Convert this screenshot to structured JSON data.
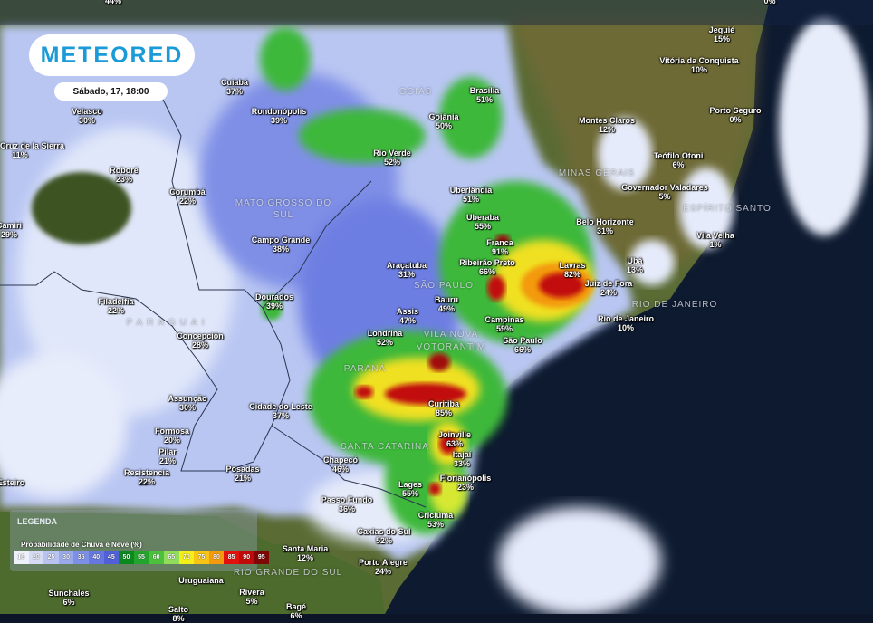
{
  "brand": {
    "logo": "METEORED",
    "logo_color": "#1a9ad6",
    "datetime": "Sábado, 17, 18:00"
  },
  "legend": {
    "title": "LEGENDA",
    "subtitle": "Probabilidade de Chuva e Neve (%)",
    "scale": [
      {
        "v": "15",
        "c": "#eef1fb"
      },
      {
        "v": "20",
        "c": "#d6dcf6"
      },
      {
        "v": "25",
        "c": "#b8c3f0"
      },
      {
        "v": "30",
        "c": "#9aa9ec"
      },
      {
        "v": "35",
        "c": "#7d8fe6"
      },
      {
        "v": "40",
        "c": "#6677e0"
      },
      {
        "v": "45",
        "c": "#5160d8"
      },
      {
        "v": "50",
        "c": "#0a8a1e"
      },
      {
        "v": "55",
        "c": "#23a42c"
      },
      {
        "v": "60",
        "c": "#4cc03c"
      },
      {
        "v": "65",
        "c": "#92dc5c"
      },
      {
        "v": "70",
        "c": "#f4ee1a"
      },
      {
        "v": "75",
        "c": "#f8c514"
      },
      {
        "v": "80",
        "c": "#f39a0e"
      },
      {
        "v": "85",
        "c": "#e1120e"
      },
      {
        "v": "90",
        "c": "#c10a0a"
      },
      {
        "v": "95",
        "c": "#7f0606"
      }
    ]
  },
  "states": [
    "GOIÁS",
    "MATO GROSSO DO SUL",
    "MINAS GERAIS",
    "ESPÍRITO SANTO",
    "SÃO PAULO",
    "RIO DE JANEIRO",
    "PARANÁ",
    "SANTA CATARINA",
    "RIO GRANDE DO SUL",
    "PARAGUAI",
    "VILA NOVA",
    "VOTORANTIM"
  ],
  "cities": [
    {
      "n": "Cuiabá",
      "p": "37%"
    },
    {
      "n": "Rondonópolis",
      "p": "39%"
    },
    {
      "n": "Velasco",
      "p": "30%"
    },
    {
      "n": "Santa Cruz de la Sierra",
      "p": "11%"
    },
    {
      "n": "Roboré",
      "p": "23%"
    },
    {
      "n": "Corumbá",
      "p": "22%"
    },
    {
      "n": "Camiri",
      "p": "29%"
    },
    {
      "n": "Campo Grande",
      "p": "38%"
    },
    {
      "n": "Rio Verde",
      "p": "52%"
    },
    {
      "n": "Goiânia",
      "p": "50%"
    },
    {
      "n": "Brasília",
      "p": "51%"
    },
    {
      "n": "Uberlândia",
      "p": "51%"
    },
    {
      "n": "Uberaba",
      "p": "55%"
    },
    {
      "n": "Franca",
      "p": "91%"
    },
    {
      "n": "Ribeirão Preto",
      "p": "66%"
    },
    {
      "n": "Lavras",
      "p": "82%"
    },
    {
      "n": "Juiz de Fora",
      "p": "24%"
    },
    {
      "n": "Belo Horizonte",
      "p": "31%"
    },
    {
      "n": "Montes Claros",
      "p": "12%"
    },
    {
      "n": "Vitória da Conquista",
      "p": "10%"
    },
    {
      "n": "Jequié",
      "p": "15%"
    },
    {
      "n": "Porto Seguro",
      "p": "0%"
    },
    {
      "n": "Teófilo Otoni",
      "p": "6%"
    },
    {
      "n": "Governador Valadares",
      "p": "5%"
    },
    {
      "n": "Vila Velha",
      "p": "1%"
    },
    {
      "n": "Ubá",
      "p": "13%"
    },
    {
      "n": "Rio de Janeiro",
      "p": "10%"
    },
    {
      "n": "Campinas",
      "p": "59%"
    },
    {
      "n": "São Paulo",
      "p": "66%"
    },
    {
      "n": "Bauru",
      "p": "49%"
    },
    {
      "n": "Assis",
      "p": "47%"
    },
    {
      "n": "Araçatuba",
      "p": "31%"
    },
    {
      "n": "Londrina",
      "p": "52%"
    },
    {
      "n": "Dourados",
      "p": "39%"
    },
    {
      "n": "Filadelfia",
      "p": "22%"
    },
    {
      "n": "Concepción",
      "p": "28%"
    },
    {
      "n": "Assunção",
      "p": "30%"
    },
    {
      "n": "Cidade do Leste",
      "p": "37%"
    },
    {
      "n": "Formosa",
      "p": "20%"
    },
    {
      "n": "Pilar",
      "p": "21%"
    },
    {
      "n": "Resistencia",
      "p": "22%"
    },
    {
      "n": "Posadas",
      "p": "21%"
    },
    {
      "n": "Curitiba",
      "p": "85%"
    },
    {
      "n": "Joinville",
      "p": "63%"
    },
    {
      "n": "Itajaí",
      "p": "33%"
    },
    {
      "n": "Chapecó",
      "p": "46%"
    },
    {
      "n": "Florianópolis",
      "p": "23%"
    },
    {
      "n": "Lages",
      "p": "55%"
    },
    {
      "n": "Passo Fundo",
      "p": "36%"
    },
    {
      "n": "Criciúma",
      "p": "53%"
    },
    {
      "n": "Caxias do Sul",
      "p": "52%"
    },
    {
      "n": "Santa Maria",
      "p": "12%"
    },
    {
      "n": "Porto Alegre",
      "p": "24%"
    },
    {
      "n": "Rivera",
      "p": "5%"
    },
    {
      "n": "Bagé",
      "p": "6%"
    },
    {
      "n": "Salto",
      "p": "8%"
    },
    {
      "n": "Sunchales",
      "p": "6%"
    },
    {
      "n": "Esteiro",
      "p": ""
    },
    {
      "n": "Uruguaiana",
      "p": ""
    },
    {
      "n": "",
      "p": "44%"
    },
    {
      "n": "",
      "p": "0%"
    }
  ]
}
